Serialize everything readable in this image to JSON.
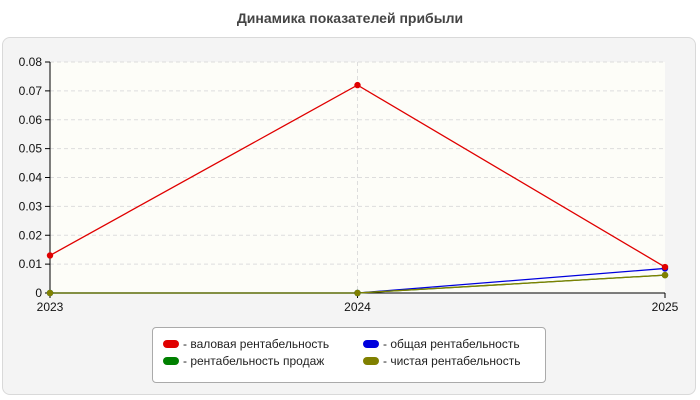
{
  "chart_data": {
    "type": "line",
    "title": "Динамика показателей прибыли",
    "xlabel": "",
    "ylabel": "",
    "x": [
      "2023",
      "2024",
      "2025"
    ],
    "ylim": [
      0,
      0.08
    ],
    "yticks": [
      "0",
      "0.01",
      "0.02",
      "0.03",
      "0.04",
      "0.05",
      "0.06",
      "0.07",
      "0.08"
    ],
    "grid": true,
    "legend_position": "bottom",
    "series": [
      {
        "name": "- валовая рентабельность",
        "color": "#e00000",
        "values": [
          0.013,
          0.072,
          0.009
        ]
      },
      {
        "name": "- общая рентабельность",
        "color": "#0000dd",
        "values": [
          0,
          0,
          0.0085
        ]
      },
      {
        "name": "- рентабельность продаж",
        "color": "#008000",
        "values": [
          0,
          0,
          0.0062
        ]
      },
      {
        "name": "- чистая рентабельность",
        "color": "#808000",
        "values": [
          0,
          0,
          0.0062
        ]
      }
    ]
  }
}
